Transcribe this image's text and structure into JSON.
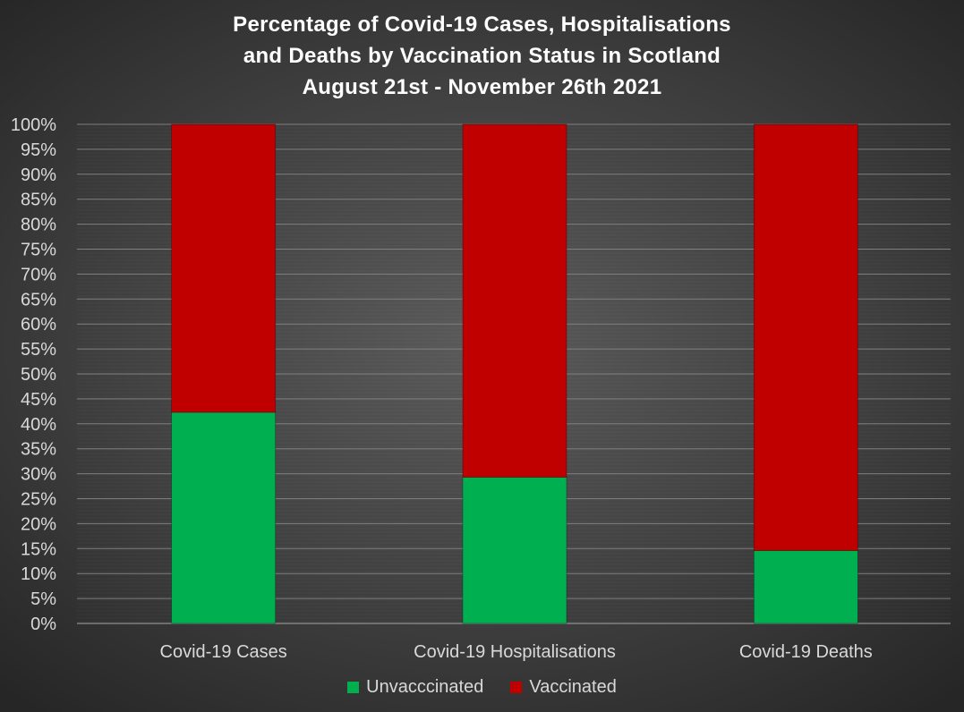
{
  "chart_data": {
    "type": "bar",
    "stacked": true,
    "title_lines": [
      "Percentage of Covid-19 Cases, Hospitalisations",
      "and Deaths by Vaccination Status in Scotland",
      "August 21st - November 26th 2021"
    ],
    "categories": [
      "Covid-19 Cases",
      "Covid-19 Hospitalisations",
      "Covid-19 Deaths"
    ],
    "series": [
      {
        "name": "Unvacccinated",
        "color": "#00b050",
        "values": [
          42.3,
          29.3,
          14.6
        ]
      },
      {
        "name": "Vaccinated",
        "color": "#c00000",
        "values": [
          57.7,
          70.7,
          85.4
        ]
      }
    ],
    "ylim": [
      0,
      100
    ],
    "y_ticks": [
      "0%",
      "5%",
      "10%",
      "15%",
      "20%",
      "25%",
      "30%",
      "35%",
      "40%",
      "45%",
      "50%",
      "55%",
      "60%",
      "65%",
      "70%",
      "75%",
      "80%",
      "85%",
      "90%",
      "95%",
      "100%"
    ],
    "gridlines": true,
    "legend_position": "bottom",
    "xlabel": "",
    "ylabel": ""
  }
}
